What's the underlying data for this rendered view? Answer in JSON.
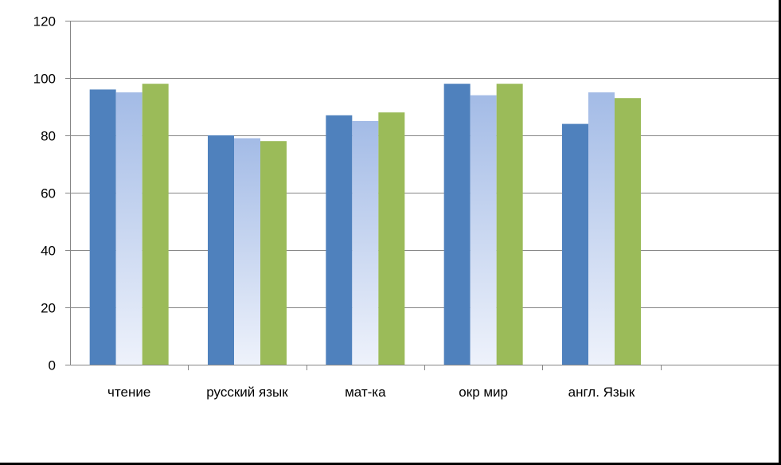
{
  "chart_data": {
    "type": "bar",
    "categories": [
      "чтение",
      "русский язык",
      "мат-ка",
      "окр мир",
      "англ. Язык",
      ""
    ],
    "series": [
      {
        "values": [
          96,
          80,
          87,
          98,
          84,
          null
        ]
      },
      {
        "values": [
          95,
          79,
          85,
          94,
          95,
          null
        ]
      },
      {
        "values": [
          98,
          78,
          88,
          98,
          93,
          null
        ]
      }
    ],
    "ylim": [
      0,
      120
    ],
    "yticks": [
      0,
      20,
      40,
      60,
      80,
      100,
      120
    ],
    "grid": true,
    "legend": "none",
    "colors": {
      "series": [
        "#4f81bd",
        "#a3bbe6",
        "#9bbb59"
      ],
      "series2_gradient_end": "#eef2fb",
      "gridline": "#868686",
      "axis": "#868686"
    }
  }
}
